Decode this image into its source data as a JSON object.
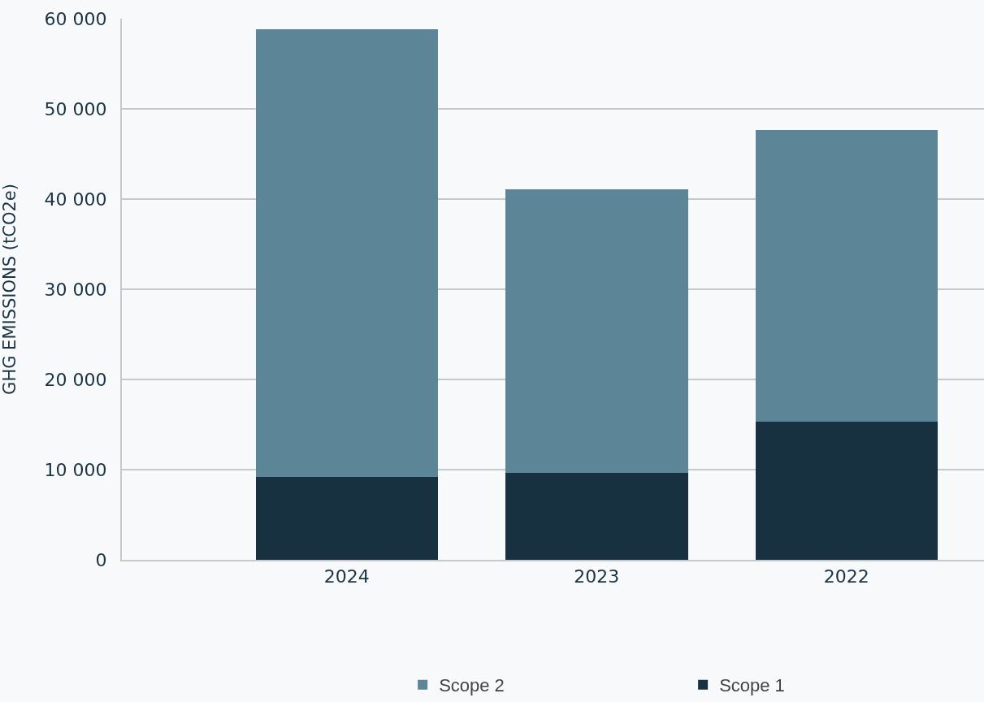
{
  "chart_data": {
    "type": "bar",
    "stacked": true,
    "ylabel": "GHG EMISSIONS (tCO2e)",
    "categories": [
      "2024",
      "2023",
      "2022"
    ],
    "series": [
      {
        "name": "Scope 1",
        "color": "#173140",
        "values": [
          9200,
          9600,
          15300
        ]
      },
      {
        "name": "Scope 2",
        "color": "#5c8597",
        "values": [
          49600,
          31500,
          32400
        ]
      }
    ],
    "ylim": [
      0,
      60000
    ],
    "yticks": [
      {
        "value": 0,
        "label": "0"
      },
      {
        "value": 10000,
        "label": "10 000"
      },
      {
        "value": 20000,
        "label": "20 000"
      },
      {
        "value": 30000,
        "label": "30 000"
      },
      {
        "value": 40000,
        "label": "40 000"
      },
      {
        "value": 50000,
        "label": "50 000"
      },
      {
        "value": 60000,
        "label": "60 000"
      }
    ],
    "grid": "y",
    "legend": "bottom"
  }
}
